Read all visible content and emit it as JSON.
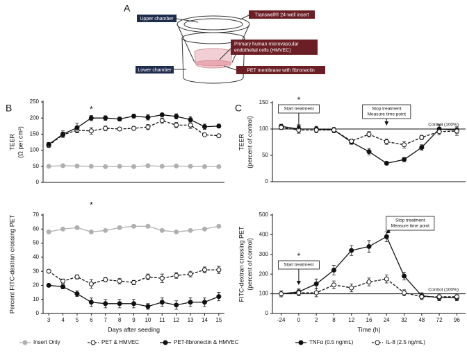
{
  "panel_labels": [
    "A",
    "B",
    "C"
  ],
  "diagram": {
    "upper_chamber": "Upper chamber",
    "insert": "Transwell® 24-well insert",
    "cells": [
      "Primary human microvascular",
      "endothelial cells (HMVEC)"
    ],
    "lower_chamber": "Lower chamber",
    "membrane": "PET membrane with fibronectin"
  },
  "chart_data": [
    {
      "type": "line",
      "ylabel": [
        "TEER",
        "(Ω per cm²)"
      ],
      "x": [
        3,
        4,
        5,
        6,
        7,
        8,
        9,
        10,
        11,
        12,
        13,
        14,
        15
      ],
      "xlim": [
        2.6,
        15.4
      ],
      "ylim": [
        0,
        250
      ],
      "yticks": [
        0,
        50,
        100,
        150,
        200,
        250
      ],
      "series": [
        {
          "color": "#b0b0b0",
          "marker": "filled",
          "dash": false,
          "values": [
            50,
            52,
            51,
            50,
            49,
            50,
            49,
            52,
            50,
            51,
            50,
            49,
            49
          ]
        },
        {
          "color": "#111111",
          "marker": "open",
          "dash": true,
          "values": [
            115,
            148,
            162,
            160,
            168,
            166,
            168,
            172,
            192,
            178,
            178,
            148,
            145
          ],
          "errors": [
            6,
            8,
            8,
            10,
            7,
            5,
            6,
            8,
            8,
            8,
            10,
            5,
            5
          ]
        },
        {
          "color": "#111111",
          "marker": "filled",
          "dash": false,
          "values": [
            118,
            150,
            170,
            200,
            200,
            197,
            206,
            202,
            210,
            205,
            195,
            173,
            175
          ],
          "errors": [
            6,
            10,
            14,
            8,
            7,
            6,
            6,
            8,
            5,
            8,
            10,
            8,
            6
          ]
        }
      ],
      "annotations": [
        {
          "text": "*",
          "at": 6
        }
      ]
    },
    {
      "type": "line",
      "ylabel": [
        "Percent FITC-dextran crossing PET"
      ],
      "xlabel": "Days after seeding",
      "x": [
        3,
        4,
        5,
        6,
        7,
        8,
        9,
        10,
        11,
        12,
        13,
        14,
        15
      ],
      "xlim": [
        2.6,
        15.4
      ],
      "xticks": [
        3,
        4,
        5,
        6,
        7,
        8,
        9,
        10,
        11,
        12,
        13,
        14,
        15
      ],
      "ylim": [
        0,
        70
      ],
      "yticks": [
        0,
        10,
        20,
        30,
        40,
        50,
        60,
        70
      ],
      "series": [
        {
          "name": "Insert Only",
          "color": "#b0b0b0",
          "marker": "filled",
          "dash": false,
          "values": [
            58,
            60,
            61,
            58,
            59,
            61,
            62,
            62,
            59,
            58,
            59,
            60,
            62
          ]
        },
        {
          "name": "PET & HMVEC",
          "color": "#111111",
          "marker": "open",
          "dash": true,
          "values": [
            30,
            23,
            26,
            21,
            24,
            23,
            22,
            26,
            25,
            27,
            28,
            31,
            31
          ],
          "errors": [
            1,
            1.5,
            1.5,
            3,
            1.5,
            2,
            1.5,
            2,
            3,
            2,
            2,
            2,
            2.5
          ]
        },
        {
          "name": "PET-fibronectin & HMVEC",
          "color": "#111111",
          "marker": "filled",
          "dash": false,
          "values": [
            20,
            19,
            14,
            8,
            7,
            7,
            7,
            5,
            8,
            6,
            8,
            8,
            12
          ],
          "errors": [
            1,
            1.5,
            2,
            3,
            3,
            3,
            3,
            2,
            3,
            3,
            3,
            3,
            3
          ]
        }
      ],
      "annotations": [
        {
          "text": "*",
          "at": 6
        }
      ]
    },
    {
      "type": "line",
      "ylabel": [
        "TEER",
        "(percent of control)"
      ],
      "ylim": [
        0,
        150
      ],
      "yticks": [
        0,
        50,
        100,
        150
      ],
      "reference_line": {
        "value": 100,
        "label": "Control (100%)"
      },
      "series": [
        {
          "color": "#111111",
          "marker": "filled",
          "dash": false,
          "values": [
            105,
            100,
            100,
            98,
            75,
            57,
            35,
            42,
            65,
            100,
            98
          ],
          "errors": [
            4,
            8,
            5,
            5,
            4,
            6,
            3,
            4,
            5,
            8,
            6
          ]
        },
        {
          "color": "#111111",
          "marker": "open",
          "dash": true,
          "values": [
            103,
            98,
            98,
            98,
            77,
            90,
            76,
            70,
            84,
            95,
            96
          ],
          "errors": [
            4,
            6,
            5,
            5,
            4,
            5,
            5,
            6,
            4,
            6,
            8
          ]
        }
      ],
      "annotations": [
        {
          "text": "*",
          "at": "0"
        },
        {
          "lines": [
            "Start treatment"
          ],
          "at": "0"
        },
        {
          "lines": [
            "Stop treatment",
            "Measure time point"
          ],
          "at": "24"
        }
      ]
    },
    {
      "type": "line",
      "ylabel": [
        "FITC-dextran crossing PET",
        "(percent of control)"
      ],
      "xlabel": "Time (h)",
      "categories": [
        "-24",
        "0",
        "2",
        "8",
        "12",
        "16",
        "24",
        "32",
        "48",
        "72",
        "96"
      ],
      "ylim": [
        0,
        500
      ],
      "yticks": [
        0,
        100,
        200,
        300,
        400,
        500
      ],
      "reference_line": {
        "value": 100,
        "label": "Control (100%)"
      },
      "series": [
        {
          "name": "TNFα (0.5 ng/mL)",
          "color": "#111111",
          "marker": "filled",
          "dash": false,
          "values": [
            100,
            110,
            150,
            220,
            320,
            340,
            390,
            190,
            90,
            80,
            80
          ],
          "errors": [
            15,
            15,
            25,
            25,
            25,
            30,
            25,
            20,
            15,
            15,
            15
          ]
        },
        {
          "name": "IL-8 (2.5 ng/mL)",
          "color": "#111111",
          "marker": "open",
          "dash": true,
          "values": [
            100,
            105,
            105,
            145,
            130,
            160,
            175,
            105,
            85,
            85,
            85
          ],
          "errors": [
            15,
            15,
            20,
            20,
            20,
            20,
            20,
            15,
            15,
            15,
            15
          ]
        }
      ],
      "annotations": [
        {
          "text": "*",
          "at": "0"
        },
        {
          "lines": [
            "Start treatment"
          ],
          "at": "0"
        },
        {
          "lines": [
            "Stop treatment",
            "Measure time point"
          ],
          "at": "24"
        }
      ]
    }
  ]
}
